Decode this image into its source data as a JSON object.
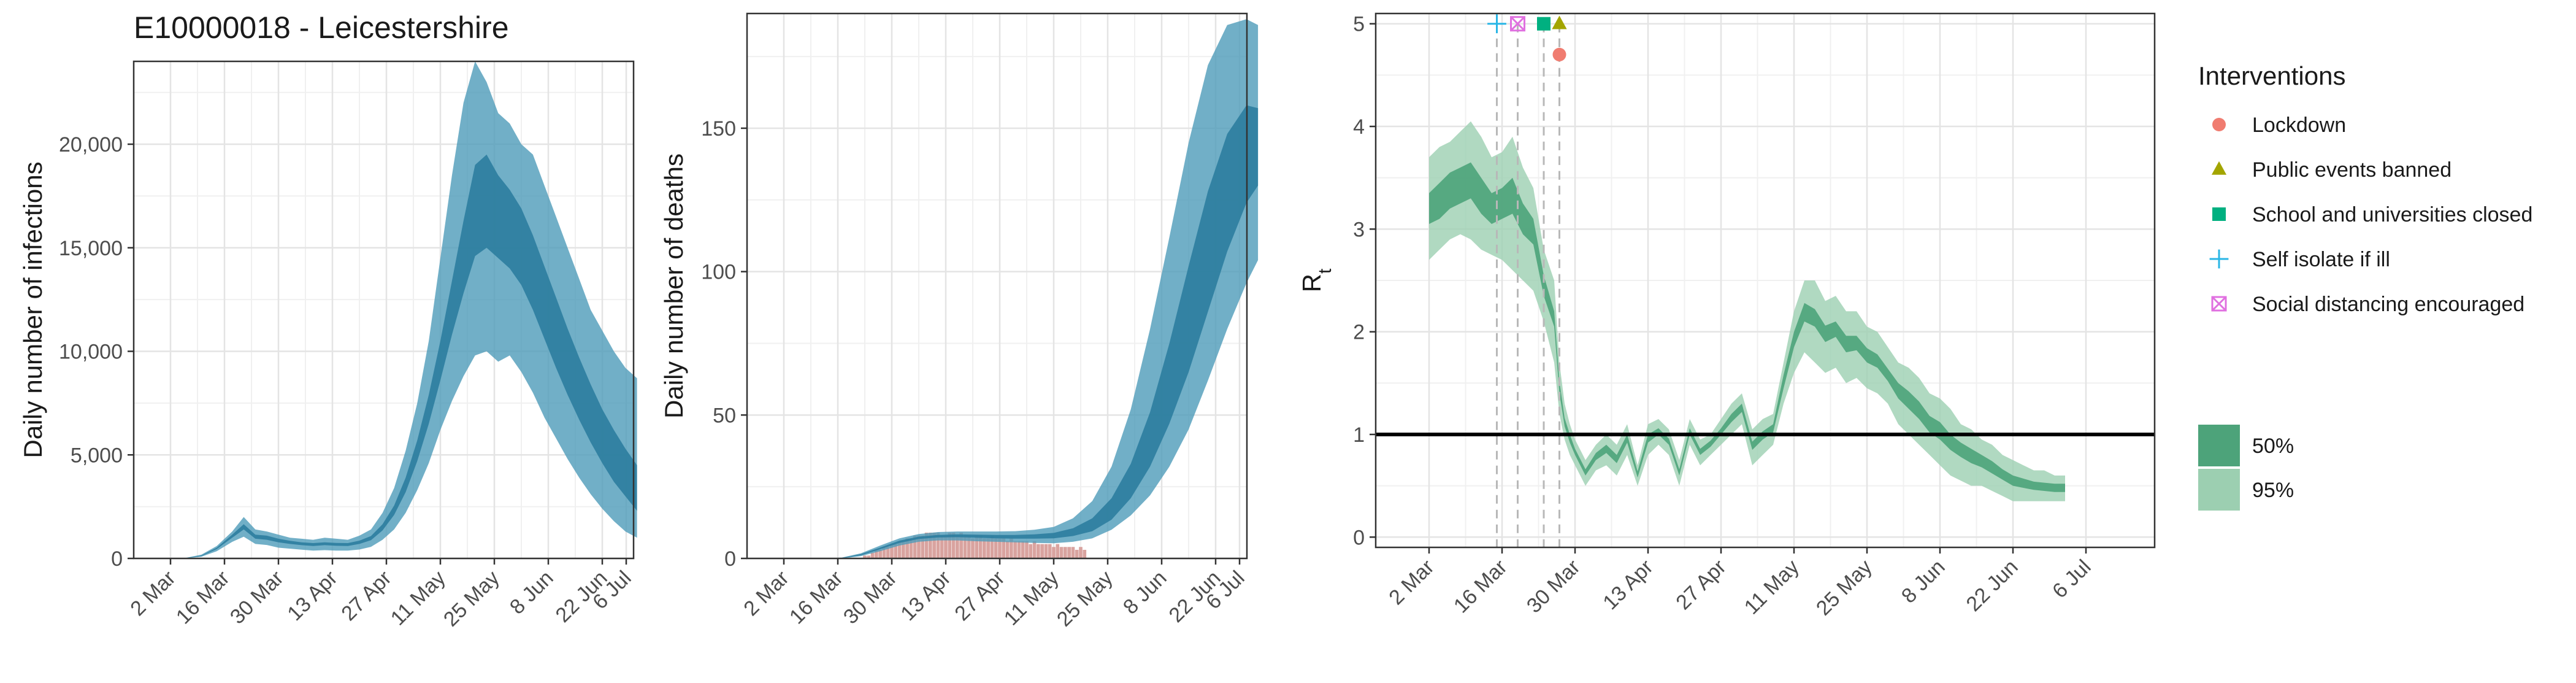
{
  "title": "E10000018 - Leicestershire",
  "chart_data": [
    {
      "type": "area",
      "ylabel": "Daily number of infections",
      "xlabel": "",
      "x_ticks": [
        "2 Mar",
        "16 Mar",
        "30 Mar",
        "13 Apr",
        "27 Apr",
        "11 May",
        "25 May",
        "8 Jun",
        "22 Jun",
        "6 Jul"
      ],
      "y_ticks": [
        "0",
        "5,000",
        "10,000",
        "15,000",
        "20,000"
      ],
      "ylim": [
        0,
        24000
      ],
      "grid": true,
      "series": [
        {
          "band": "95%",
          "color": "#4e9bb9",
          "day": [
            0,
            4,
            8,
            12,
            16,
            19,
            22,
            25,
            28,
            31,
            34,
            37,
            40,
            43,
            46,
            49,
            52,
            55,
            58,
            61,
            64,
            67,
            70,
            73,
            76,
            79,
            82,
            85,
            88,
            91,
            94,
            97,
            100,
            103,
            106,
            109,
            112,
            115,
            118,
            121
          ],
          "lower": [
            0,
            10,
            80,
            350,
            800,
            1050,
            700,
            650,
            520,
            470,
            420,
            380,
            400,
            380,
            380,
            430,
            560,
            900,
            1400,
            2200,
            3300,
            4600,
            6200,
            7600,
            8800,
            9800,
            10000,
            9500,
            9800,
            9000,
            8000,
            6800,
            5800,
            4800,
            3900,
            3100,
            2400,
            1800,
            1300,
            1000
          ],
          "upper": [
            0,
            30,
            180,
            600,
            1300,
            2000,
            1400,
            1300,
            1150,
            1000,
            950,
            900,
            1000,
            950,
            900,
            1100,
            1400,
            2200,
            3400,
            5200,
            7500,
            10500,
            14500,
            18500,
            22000,
            24000,
            23000,
            21500,
            21000,
            20000,
            19500,
            18000,
            16500,
            15000,
            13500,
            12000,
            11000,
            10000,
            9200,
            8700
          ]
        },
        {
          "band": "50%",
          "color": "#2c7d9e",
          "day": [
            0,
            4,
            8,
            12,
            16,
            19,
            22,
            25,
            28,
            31,
            34,
            37,
            40,
            43,
            46,
            49,
            52,
            55,
            58,
            61,
            64,
            67,
            70,
            73,
            76,
            79,
            82,
            85,
            88,
            91,
            94,
            97,
            100,
            103,
            106,
            109,
            112,
            115,
            118,
            121
          ],
          "lower": [
            0,
            15,
            110,
            450,
            1000,
            1400,
            950,
            900,
            780,
            700,
            640,
            600,
            640,
            610,
            600,
            700,
            880,
            1350,
            2100,
            3200,
            4700,
            6500,
            8600,
            10800,
            12800,
            14600,
            15000,
            14500,
            14000,
            13200,
            12000,
            10600,
            9200,
            7900,
            6700,
            5600,
            4600,
            3700,
            3000,
            2300
          ],
          "upper": [
            0,
            22,
            140,
            520,
            1150,
            1650,
            1150,
            1100,
            950,
            850,
            780,
            740,
            780,
            750,
            740,
            860,
            1080,
            1650,
            2550,
            3900,
            5700,
            7900,
            10500,
            13400,
            16300,
            19000,
            19500,
            18500,
            17800,
            16900,
            15600,
            14100,
            12600,
            11100,
            9700,
            8400,
            7200,
            6200,
            5300,
            4500
          ]
        }
      ]
    },
    {
      "type": "area",
      "ylabel": "Daily number of deaths",
      "xlabel": "",
      "x_ticks": [
        "2 Mar",
        "16 Mar",
        "30 Mar",
        "13 Apr",
        "27 Apr",
        "11 May",
        "25 May",
        "8 Jun",
        "22 Jun",
        "6 Jul"
      ],
      "y_ticks": [
        "0",
        "50",
        "100",
        "150"
      ],
      "ylim": [
        0,
        190
      ],
      "grid": true,
      "observed_deaths": {
        "color": "#d9a39f",
        "day": [
          21,
          22,
          23,
          24,
          25,
          26,
          27,
          28,
          29,
          30,
          31,
          32,
          33,
          34,
          35,
          36,
          37,
          38,
          39,
          40,
          41,
          42,
          43,
          44,
          45,
          46,
          47,
          48,
          49,
          50,
          51,
          52,
          53,
          54,
          55,
          56,
          57,
          58,
          59,
          60,
          61,
          62,
          63,
          64,
          65,
          66,
          67,
          68,
          69,
          70,
          71,
          72,
          73,
          74,
          75,
          76,
          77,
          78
        ],
        "value": [
          1,
          1,
          2,
          3,
          3,
          4,
          4,
          5,
          5,
          6,
          6,
          7,
          7,
          8,
          8,
          8,
          9,
          9,
          9,
          9,
          8,
          8,
          9,
          9,
          8,
          9,
          8,
          8,
          7,
          8,
          8,
          7,
          7,
          8,
          7,
          7,
          7,
          6,
          7,
          6,
          6,
          6,
          6,
          5,
          6,
          5,
          5,
          5,
          5,
          4,
          5,
          4,
          4,
          4,
          4,
          3,
          4,
          3
        ]
      },
      "series": [
        {
          "band": "95%",
          "color": "#4e9bb9",
          "day": [
            0,
            10,
            15,
            20,
            25,
            30,
            35,
            40,
            45,
            50,
            55,
            60,
            65,
            70,
            75,
            80,
            85,
            90,
            95,
            100,
            105,
            110,
            115,
            120,
            123
          ],
          "lower": [
            0,
            0,
            0,
            0.8,
            2.5,
            4.5,
            5.8,
            6.3,
            6.3,
            6,
            5.8,
            5.6,
            5.4,
            5.3,
            5.8,
            7,
            10,
            15,
            22,
            32,
            45,
            62,
            80,
            96,
            104
          ],
          "upper": [
            0,
            0,
            0.3,
            1.8,
            4.5,
            7,
            8.5,
            9.2,
            9.4,
            9.4,
            9.4,
            9.5,
            10,
            11,
            14,
            20,
            32,
            52,
            80,
            112,
            145,
            172,
            186,
            188,
            186
          ]
        },
        {
          "band": "50%",
          "color": "#2c7d9e",
          "day": [
            0,
            10,
            15,
            20,
            25,
            30,
            35,
            40,
            45,
            50,
            55,
            60,
            65,
            70,
            75,
            80,
            85,
            90,
            95,
            100,
            105,
            110,
            115,
            120,
            123
          ],
          "lower": [
            0,
            0,
            0.1,
            1.1,
            3.2,
            5.4,
            6.8,
            7.3,
            7.4,
            7.2,
            7,
            6.9,
            6.9,
            7,
            7.8,
            9.5,
            13.5,
            21,
            32,
            47,
            65,
            86,
            107,
            124,
            130
          ],
          "upper": [
            0,
            0,
            0.2,
            1.5,
            3.8,
            6.2,
            7.6,
            8.2,
            8.4,
            8.3,
            8.2,
            8.2,
            8.4,
            8.9,
            10.5,
            14,
            21,
            33,
            51,
            75,
            102,
            128,
            148,
            158,
            157
          ]
        }
      ]
    },
    {
      "type": "area",
      "ylabel": "R",
      "ylabel_subscript": "t",
      "xlabel": "",
      "x_ticks": [
        "2 Mar",
        "16 Mar",
        "30 Mar",
        "13 Apr",
        "27 Apr",
        "11 May",
        "25 May",
        "8 Jun",
        "22 Jun",
        "6 Jul"
      ],
      "y_ticks": [
        "0",
        "1",
        "2",
        "3",
        "4",
        "5"
      ],
      "ylim": [
        -0.1,
        5.1
      ],
      "grid": true,
      "reference_line": 1,
      "interventions": [
        {
          "name": "Self isolate if ill",
          "day": 13,
          "marker_y": 5,
          "shape": "plus",
          "color": "#29b6e6"
        },
        {
          "name": "Social distancing encouraged",
          "day": 17,
          "marker_y": 5,
          "shape": "boxx",
          "color": "#e070e0"
        },
        {
          "name": "School and universities closed",
          "day": 22,
          "marker_y": 5,
          "shape": "square",
          "color": "#00b080"
        },
        {
          "name": "Public events banned",
          "day": 25,
          "marker_y": 5,
          "shape": "triangle",
          "color": "#a3a500"
        },
        {
          "name": "Lockdown",
          "day": 25,
          "marker_y": 4.7,
          "shape": "circle",
          "color": "#f07c70"
        }
      ],
      "series": [
        {
          "band": "95%",
          "color": "#9ccfb1",
          "day": [
            0,
            2,
            4,
            6,
            8,
            10,
            12,
            14,
            16,
            18,
            20,
            22,
            24,
            25,
            26,
            27,
            28,
            30,
            32,
            34,
            36,
            38,
            40,
            42,
            44,
            46,
            48,
            50,
            52,
            54,
            56,
            58,
            60,
            62,
            64,
            66,
            68,
            70,
            72,
            74,
            76,
            78,
            80,
            82,
            84,
            86,
            88,
            90,
            92,
            94,
            96,
            98,
            100,
            102,
            104,
            106,
            108,
            110,
            112,
            114,
            116,
            118,
            120,
            122
          ],
          "lower": [
            2.7,
            2.8,
            2.9,
            2.95,
            2.9,
            2.8,
            2.75,
            2.7,
            2.6,
            2.5,
            2.4,
            2.1,
            1.7,
            1.2,
            0.95,
            0.8,
            0.7,
            0.5,
            0.65,
            0.7,
            0.6,
            0.8,
            0.5,
            0.8,
            0.9,
            0.8,
            0.5,
            0.9,
            0.7,
            0.8,
            0.9,
            1.0,
            1.1,
            0.7,
            0.8,
            0.9,
            1.3,
            1.6,
            1.8,
            1.7,
            1.6,
            1.65,
            1.5,
            1.55,
            1.45,
            1.4,
            1.3,
            1.1,
            1.0,
            0.9,
            0.8,
            0.7,
            0.6,
            0.55,
            0.5,
            0.5,
            0.45,
            0.4,
            0.35,
            0.35,
            0.35,
            0.35,
            0.35,
            0.35
          ],
          "upper": [
            3.7,
            3.8,
            3.85,
            3.95,
            4.05,
            3.9,
            3.7,
            3.75,
            3.9,
            3.6,
            3.4,
            2.8,
            2.5,
            1.7,
            1.3,
            1.1,
            0.95,
            0.75,
            0.9,
            1.0,
            0.9,
            1.1,
            0.7,
            1.1,
            1.15,
            1.05,
            0.75,
            1.15,
            0.95,
            1.0,
            1.15,
            1.3,
            1.4,
            1.05,
            1.15,
            1.2,
            1.7,
            2.2,
            2.5,
            2.5,
            2.3,
            2.35,
            2.2,
            2.2,
            2.05,
            2.0,
            1.85,
            1.7,
            1.65,
            1.55,
            1.4,
            1.35,
            1.25,
            1.1,
            1.05,
            0.95,
            0.9,
            0.8,
            0.75,
            0.7,
            0.65,
            0.65,
            0.6,
            0.6
          ]
        },
        {
          "band": "50%",
          "color": "#4da37a",
          "day": [
            0,
            2,
            4,
            6,
            8,
            10,
            12,
            14,
            16,
            18,
            20,
            22,
            24,
            25,
            26,
            27,
            28,
            30,
            32,
            34,
            36,
            38,
            40,
            42,
            44,
            46,
            48,
            50,
            52,
            54,
            56,
            58,
            60,
            62,
            64,
            66,
            68,
            70,
            72,
            74,
            76,
            78,
            80,
            82,
            84,
            86,
            88,
            90,
            92,
            94,
            96,
            98,
            100,
            102,
            104,
            106,
            108,
            110,
            112,
            114,
            116,
            118,
            120,
            122
          ],
          "lower": [
            3.05,
            3.1,
            3.2,
            3.25,
            3.3,
            3.15,
            3.05,
            3.1,
            3.15,
            2.95,
            2.85,
            2.35,
            2.05,
            1.4,
            1.08,
            0.92,
            0.8,
            0.6,
            0.75,
            0.82,
            0.72,
            0.92,
            0.58,
            0.92,
            1.0,
            0.9,
            0.6,
            1.0,
            0.8,
            0.88,
            1.0,
            1.12,
            1.22,
            0.85,
            0.95,
            1.02,
            1.45,
            1.85,
            2.1,
            2.05,
            1.9,
            1.95,
            1.8,
            1.82,
            1.7,
            1.65,
            1.52,
            1.35,
            1.25,
            1.15,
            1.02,
            0.95,
            0.85,
            0.78,
            0.72,
            0.68,
            0.62,
            0.56,
            0.5,
            0.48,
            0.46,
            0.45,
            0.44,
            0.44
          ],
          "upper": [
            3.35,
            3.45,
            3.55,
            3.6,
            3.65,
            3.5,
            3.35,
            3.4,
            3.5,
            3.25,
            3.1,
            2.55,
            2.2,
            1.52,
            1.16,
            1.0,
            0.86,
            0.66,
            0.82,
            0.9,
            0.8,
            1.0,
            0.64,
            1.0,
            1.06,
            0.96,
            0.66,
            1.06,
            0.86,
            0.94,
            1.06,
            1.2,
            1.3,
            0.93,
            1.03,
            1.1,
            1.58,
            2.0,
            2.28,
            2.22,
            2.06,
            2.1,
            1.96,
            1.96,
            1.84,
            1.78,
            1.64,
            1.5,
            1.42,
            1.32,
            1.18,
            1.12,
            1.0,
            0.92,
            0.86,
            0.8,
            0.74,
            0.66,
            0.6,
            0.57,
            0.54,
            0.53,
            0.52,
            0.52
          ]
        }
      ]
    }
  ],
  "legend": {
    "interventions_title": "Interventions",
    "interventions": [
      {
        "label": "Lockdown",
        "shape": "circle",
        "color": "#f07c70"
      },
      {
        "label": "Public events banned",
        "shape": "triangle",
        "color": "#a3a500"
      },
      {
        "label": "School and universities closed",
        "shape": "square",
        "color": "#00b080"
      },
      {
        "label": "Self isolate if ill",
        "shape": "plus",
        "color": "#29b6e6"
      },
      {
        "label": "Social distancing encouraged",
        "shape": "boxx",
        "color": "#e070e0"
      }
    ],
    "bands": [
      {
        "label": "50%",
        "color": "#4da37a"
      },
      {
        "label": "95%",
        "color": "#9ccfb1"
      }
    ]
  }
}
